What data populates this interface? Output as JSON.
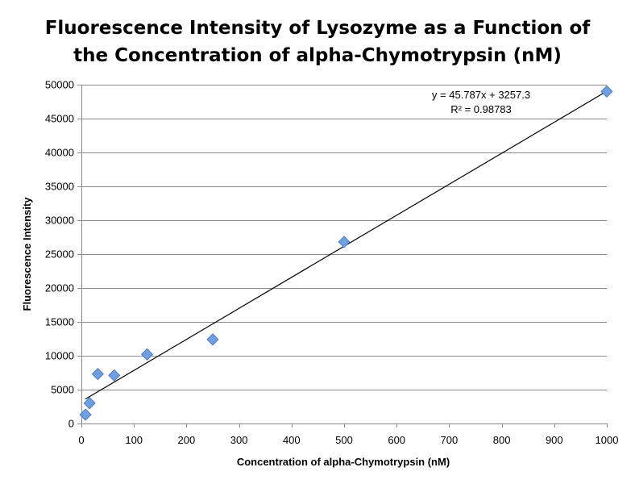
{
  "chart_data": {
    "type": "scatter",
    "title_lines": [
      "Fluorescence Intensity of Lysozyme as a Function of",
      "the Concentration of alpha-Chymotrypsin (nM)"
    ],
    "xlabel": "Concentration of alpha-Chymotrypsin (nM)",
    "ylabel": "Fluorescence Intensity",
    "xlim": [
      0,
      1000
    ],
    "ylim": [
      0,
      50000
    ],
    "x_ticks": [
      0,
      100,
      200,
      300,
      400,
      500,
      600,
      700,
      800,
      900,
      1000
    ],
    "y_ticks": [
      0,
      5000,
      10000,
      15000,
      20000,
      25000,
      30000,
      35000,
      40000,
      45000,
      50000
    ],
    "grid": "horizontal",
    "marker": "diamond",
    "marker_color": "#6f9fe0",
    "points": [
      {
        "x": 7.8,
        "y": 1300
      },
      {
        "x": 15.6,
        "y": 3000
      },
      {
        "x": 31.25,
        "y": 7300
      },
      {
        "x": 62.5,
        "y": 7100
      },
      {
        "x": 125,
        "y": 10200
      },
      {
        "x": 250,
        "y": 12400
      },
      {
        "x": 500,
        "y": 26800
      },
      {
        "x": 1000,
        "y": 49000
      }
    ],
    "trendline": {
      "slope": 45.787,
      "intercept": 3257.3,
      "x_range": [
        7.8,
        1000
      ],
      "equation": "y = 45.787x + 3257.3",
      "r_squared": "R² = 0.98783"
    }
  }
}
